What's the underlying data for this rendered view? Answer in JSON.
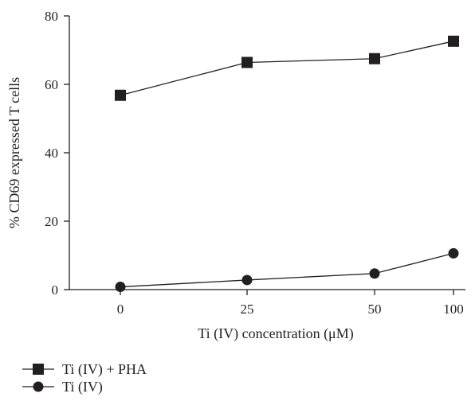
{
  "chart_data": {
    "type": "line",
    "title": "",
    "xlabel": "Ti (IV) concentration (μM)",
    "ylabel": "% CD69 expressed T cells",
    "categories": [
      "0",
      "25",
      "50",
      "100"
    ],
    "x_axis_scale": "categorical (equally spaced)",
    "ylim": [
      0,
      80
    ],
    "yticks": [
      0,
      20,
      40,
      60,
      80
    ],
    "grid": false,
    "legend_position": "bottom-left",
    "series": [
      {
        "name": "Ti (IV) + PHA",
        "marker": "square",
        "color": "#231f20",
        "values": [
          56.8,
          66.4,
          67.5,
          72.6
        ]
      },
      {
        "name": "Ti (IV)",
        "marker": "circle",
        "color": "#231f20",
        "values": [
          0.8,
          2.8,
          4.7,
          10.6
        ]
      }
    ]
  }
}
